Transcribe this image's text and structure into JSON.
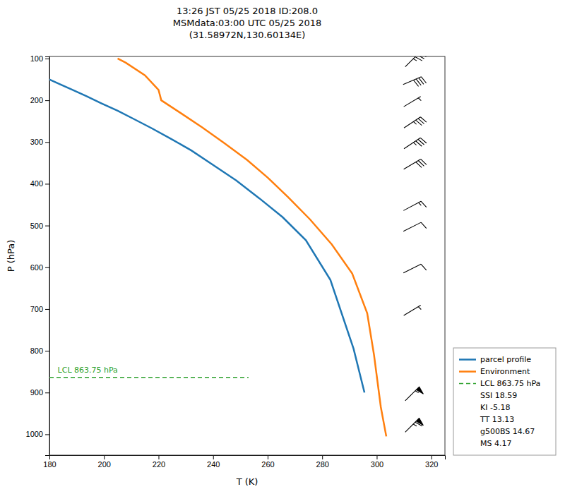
{
  "chart_data": {
    "type": "line",
    "title": [
      "13:26 JST 05/25 2018  ID:208.0",
      "MSMdata:03:00 UTC 05/25 2018",
      "(31.58972N,130.60134E)"
    ],
    "xlabel": "T (K)",
    "ylabel": "P (hPa)",
    "xlim": [
      180,
      325
    ],
    "ylim": [
      1050,
      95
    ],
    "xticks": [
      180,
      200,
      220,
      240,
      260,
      280,
      300,
      320
    ],
    "yticks": [
      100,
      200,
      300,
      400,
      500,
      600,
      700,
      800,
      900,
      1000
    ],
    "grid": false,
    "legend": "lower right",
    "series": [
      {
        "name": "parcel profile",
        "color": "#1f77b4",
        "x": [
          180.0,
          184.0,
          188.5,
          193.5,
          199.0,
          205.0,
          211.0,
          217.5,
          224.5,
          232.0,
          240.0,
          248.5,
          257.0,
          265.5,
          274.0,
          283.0,
          291.5,
          295.5
        ],
        "values": [
          150,
          162,
          175,
          190,
          207,
          225,
          245,
          267,
          292,
          320,
          355,
          392,
          435,
          480,
          535,
          630,
          795,
          900
        ]
      },
      {
        "name": "Environment",
        "color": "#ff7f0e",
        "x": [
          205.0,
          208.0,
          215.0,
          220.0,
          221.0,
          228.0,
          236.0,
          244.0,
          252.5,
          260.0,
          267.5,
          275.5,
          283.5,
          291.0,
          296.5,
          299.0,
          301.5,
          303.5
        ],
        "values": [
          100,
          110,
          140,
          175,
          200,
          230,
          265,
          302,
          343,
          385,
          432,
          485,
          545,
          615,
          710,
          810,
          935,
          1005
        ]
      },
      {
        "name": "LCL 863.75 hPa",
        "color": "#2ca02c",
        "line_style": "dashed",
        "x": [
          180,
          253
        ],
        "values": [
          863.75,
          863.75
        ]
      }
    ],
    "annotations": [
      {
        "text": "LCL 863.75 hPa",
        "x": 183,
        "y": 851.75,
        "color": "#2ca02c"
      }
    ],
    "legend_notes": [
      "SSI 18.59",
      "KI -5.18",
      "TT 13.13",
      "g500BS 14.67",
      "MS 4.17"
    ],
    "wind_barbs": {
      "x": 313,
      "color": "black",
      "pressure": [
        103,
        153,
        203,
        253,
        303,
        353,
        453,
        503,
        603,
        703,
        903,
        978
      ],
      "u": [
        -25,
        -35,
        -5,
        -30,
        -30,
        -25,
        -15,
        -10,
        -10,
        -5,
        -40,
        -45
      ],
      "v": [
        -25,
        -15,
        -3,
        -20,
        -20,
        -15,
        -8,
        -5,
        -5,
        -3,
        -40,
        -45
      ]
    }
  }
}
